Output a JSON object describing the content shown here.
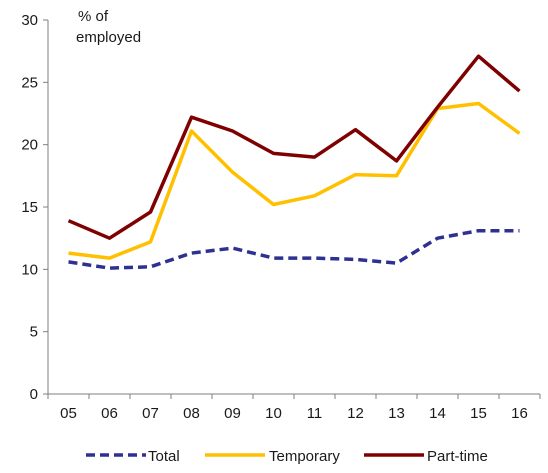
{
  "chart_data": {
    "type": "line",
    "title": "",
    "xlabel": "",
    "ylabel": "% of employed",
    "ylabel_lines": [
      "% of",
      "employed"
    ],
    "categories": [
      "05",
      "06",
      "07",
      "08",
      "09",
      "10",
      "11",
      "12",
      "13",
      "14",
      "15",
      "16"
    ],
    "ylim": [
      0,
      30
    ],
    "yticks": [
      0,
      5,
      10,
      15,
      20,
      25,
      30
    ],
    "grid": false,
    "legend_position": "bottom",
    "series": [
      {
        "name": "Total",
        "color": "#2e3192",
        "style": "dashed",
        "values": [
          10.6,
          10.1,
          10.2,
          11.3,
          11.7,
          10.9,
          10.9,
          10.8,
          10.5,
          12.5,
          13.1,
          13.1
        ]
      },
      {
        "name": "Temporary",
        "color": "#ffc000",
        "style": "solid",
        "values": [
          11.3,
          10.9,
          12.2,
          21.1,
          17.8,
          15.2,
          15.9,
          17.6,
          17.5,
          22.9,
          23.3,
          20.9
        ]
      },
      {
        "name": "Part-time",
        "color": "#7f0000",
        "style": "solid",
        "values": [
          13.9,
          12.5,
          14.6,
          22.2,
          21.1,
          19.3,
          19.0,
          21.2,
          18.7,
          23.0,
          27.1,
          24.3
        ]
      }
    ]
  }
}
